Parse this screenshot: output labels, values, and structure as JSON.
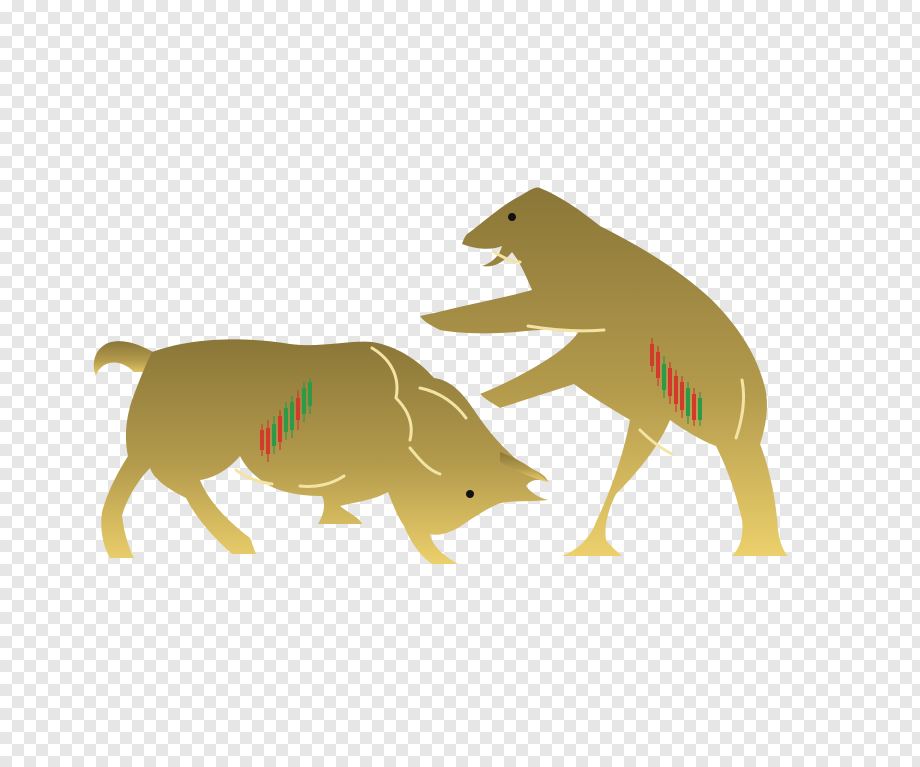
{
  "image": {
    "subject": "bull-and-bear-fighting",
    "background": "transparent-checkerboard",
    "colors": {
      "gold_light": "#e3c766",
      "gold_dark": "#8e7a3c",
      "candle_up": "#2e9a48",
      "candle_down": "#d33a2c",
      "eye": "#111111",
      "checker_light": "#ffffff",
      "checker_dark": "#e6e6e6"
    },
    "figures": [
      {
        "name": "bull",
        "pattern": "candlestick-uptrend"
      },
      {
        "name": "bear",
        "pattern": "candlestick-downtrend"
      }
    ]
  }
}
